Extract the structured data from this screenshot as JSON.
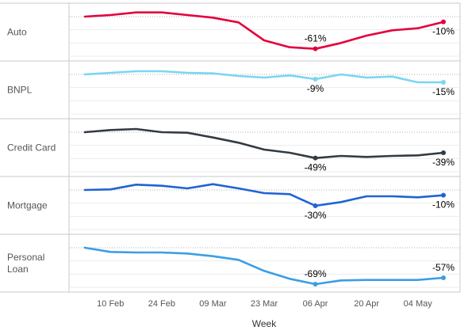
{
  "chart_data": {
    "type": "line",
    "layout": "small-multiples",
    "xlabel": "Week",
    "x_ticks": [
      "10 Feb",
      "24 Feb",
      "09 Mar",
      "23 Mar",
      "06 Apr",
      "20 Apr",
      "04 May"
    ],
    "x": [
      "03 Feb",
      "10 Feb",
      "17 Feb",
      "24 Feb",
      "02 Mar",
      "09 Mar",
      "16 Mar",
      "23 Mar",
      "30 Mar",
      "06 Apr",
      "13 Apr",
      "20 Apr",
      "27 Apr",
      "04 May",
      "11 May"
    ],
    "ylabel": "",
    "grid": true,
    "series": [
      {
        "name": "Auto",
        "color": "#e4003b",
        "values": [
          0,
          3,
          8,
          8,
          3,
          -2,
          -11,
          -45,
          -58,
          -61,
          -50,
          -36,
          -26,
          -22,
          -10
        ],
        "annotations": [
          {
            "x_index": 9,
            "label": "-61%"
          },
          {
            "x_index": 14,
            "label": "-10%"
          }
        ]
      },
      {
        "name": "BNPL",
        "color": "#7ad6f0",
        "values": [
          0,
          3,
          6,
          6,
          3,
          2,
          -3,
          -6,
          -2,
          -9,
          0,
          -6,
          -4,
          -15,
          -15
        ],
        "annotations": [
          {
            "x_index": 9,
            "label": "-9%"
          },
          {
            "x_index": 14,
            "label": "-15%"
          }
        ]
      },
      {
        "name": "Credit Card",
        "color": "#333a42",
        "values": [
          0,
          4,
          6,
          0,
          -1,
          -10,
          -20,
          -33,
          -39,
          -49,
          -45,
          -47,
          -45,
          -44,
          -39
        ],
        "annotations": [
          {
            "x_index": 9,
            "label": "-49%"
          },
          {
            "x_index": 14,
            "label": "-39%"
          }
        ]
      },
      {
        "name": "Mortgage",
        "color": "#1f63d6",
        "values": [
          0,
          1,
          10,
          8,
          3,
          11,
          3,
          -6,
          -8,
          -30,
          -23,
          -12,
          -12,
          -14,
          -10
        ],
        "annotations": [
          {
            "x_index": 9,
            "label": "-30%"
          },
          {
            "x_index": 14,
            "label": "-10%"
          }
        ]
      },
      {
        "name": "Personal Loan",
        "color": "#3b9ee4",
        "values": [
          0,
          -8,
          -9,
          -9,
          -11,
          -16,
          -23,
          -44,
          -59,
          -69,
          -62,
          -61,
          -61,
          -61,
          -57
        ],
        "annotations": [
          {
            "x_index": 9,
            "label": "-69%"
          },
          {
            "x_index": 14,
            "label": "-57%"
          }
        ]
      }
    ]
  }
}
